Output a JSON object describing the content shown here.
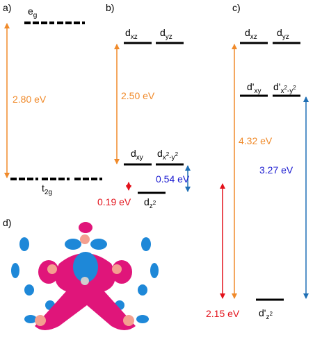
{
  "panels": {
    "a": "a)",
    "b": "b)",
    "c": "c)",
    "d": "d)"
  },
  "panel_a": {
    "upper_level": {
      "main": "e",
      "sub": "g"
    },
    "lower_level": {
      "main": "t",
      "sub": "2g"
    },
    "gap": "2.80 eV"
  },
  "panel_b": {
    "dxz": {
      "main": "d",
      "sub": "xz"
    },
    "dyz": {
      "main": "d",
      "sub": "yz"
    },
    "dxy": {
      "main": "d",
      "sub": "xy"
    },
    "dx2y2": {
      "main": "d",
      "sub": "x",
      "sup1": "2",
      "mid": "-y",
      "sup2": "2"
    },
    "dz2": {
      "main": "d",
      "sub": "z",
      "sup": "2"
    },
    "gap_total": "2.50 eV",
    "gap_xy_z2": "0.54 eV",
    "gap_small": "0.19 eV"
  },
  "panel_c": {
    "dxz": {
      "main": "d",
      "sub": "xz"
    },
    "dyz": {
      "main": "d",
      "sub": "yz"
    },
    "dxy": {
      "main": "d'",
      "sub": "xy"
    },
    "dx2y2": {
      "main": "d'",
      "sub": "x",
      "sup1": "2",
      "mid": "-y",
      "sup2": "2"
    },
    "dz2": {
      "main": "d'",
      "sub": "z",
      "sup": "2"
    },
    "gap_total": "4.32 eV",
    "gap_xy_z2": "3.27 eV",
    "gap_z2": "2.15 eV"
  }
}
